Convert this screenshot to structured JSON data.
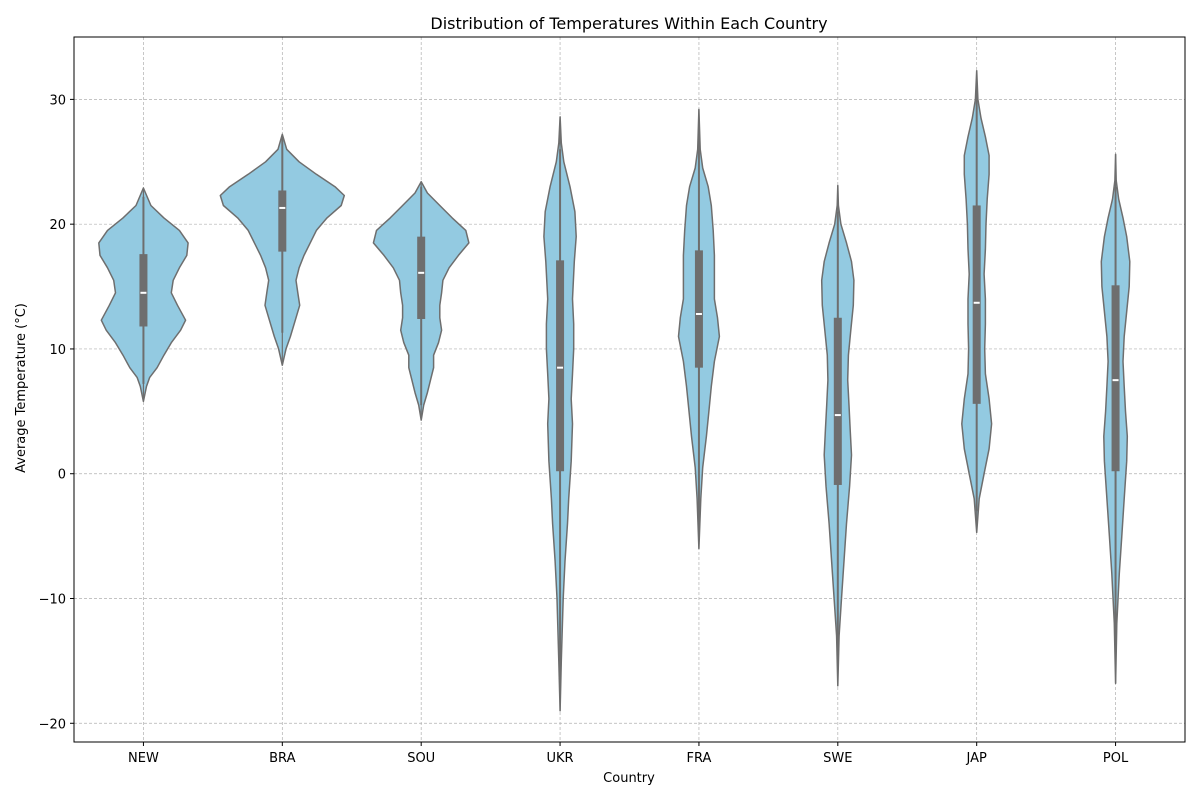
{
  "chart_data": {
    "type": "violin",
    "title": "Distribution of Temperatures Within Each Country",
    "xlabel": "Country",
    "ylabel": "Average Temperature (°C)",
    "ylim": [
      -21.5,
      35
    ],
    "yticks": [
      -20,
      -10,
      0,
      10,
      20,
      30
    ],
    "grid": true,
    "colors": {
      "fill": "#93cae1",
      "edge": "#6e6e6e",
      "box": "#6e6e6e",
      "median": "#ffffff",
      "grid": "#b0b0b0"
    },
    "categories": [
      "NEW",
      "BRA",
      "SOU",
      "UKR",
      "FRA",
      "SWE",
      "JAP",
      "POL"
    ],
    "violins": [
      {
        "category": "NEW",
        "min": 5.8,
        "max": 22.9,
        "q1": 11.8,
        "median": 14.5,
        "q3": 17.6,
        "whisker_low": 7.2,
        "whisker_high": 22.2,
        "profile": [
          [
            5.8,
            0.0
          ],
          [
            7.0,
            0.05
          ],
          [
            7.7,
            0.1
          ],
          [
            8.5,
            0.22
          ],
          [
            9.5,
            0.33
          ],
          [
            10.5,
            0.45
          ],
          [
            11.5,
            0.6
          ],
          [
            12.3,
            0.68
          ],
          [
            13.5,
            0.55
          ],
          [
            14.5,
            0.45
          ],
          [
            15.5,
            0.48
          ],
          [
            16.5,
            0.58
          ],
          [
            17.5,
            0.7
          ],
          [
            18.5,
            0.72
          ],
          [
            19.5,
            0.58
          ],
          [
            20.5,
            0.33
          ],
          [
            21.5,
            0.12
          ],
          [
            22.9,
            0.0
          ]
        ]
      },
      {
        "category": "BRA",
        "min": 8.7,
        "max": 27.2,
        "q1": 17.8,
        "median": 21.3,
        "q3": 22.7,
        "whisker_low": 11.3,
        "whisker_high": 27.0,
        "profile": [
          [
            8.7,
            0.0
          ],
          [
            10.0,
            0.06
          ],
          [
            11.0,
            0.13
          ],
          [
            12.5,
            0.22
          ],
          [
            13.5,
            0.28
          ],
          [
            14.5,
            0.25
          ],
          [
            15.5,
            0.22
          ],
          [
            16.5,
            0.27
          ],
          [
            17.5,
            0.35
          ],
          [
            18.5,
            0.45
          ],
          [
            19.5,
            0.55
          ],
          [
            20.5,
            0.72
          ],
          [
            21.5,
            0.95
          ],
          [
            22.3,
            1.0
          ],
          [
            23.0,
            0.85
          ],
          [
            24.0,
            0.55
          ],
          [
            25.0,
            0.27
          ],
          [
            26.0,
            0.07
          ],
          [
            27.2,
            0.0
          ]
        ]
      },
      {
        "category": "SOU",
        "min": 4.3,
        "max": 23.4,
        "q1": 12.4,
        "median": 16.1,
        "q3": 19.0,
        "whisker_low": 5.5,
        "whisker_high": 23.0,
        "profile": [
          [
            4.3,
            0.0
          ],
          [
            5.5,
            0.04
          ],
          [
            6.5,
            0.1
          ],
          [
            7.5,
            0.15
          ],
          [
            8.5,
            0.2
          ],
          [
            9.5,
            0.2
          ],
          [
            10.5,
            0.28
          ],
          [
            11.5,
            0.33
          ],
          [
            12.5,
            0.3
          ],
          [
            13.5,
            0.3
          ],
          [
            14.5,
            0.33
          ],
          [
            15.5,
            0.35
          ],
          [
            16.5,
            0.45
          ],
          [
            17.5,
            0.6
          ],
          [
            18.5,
            0.77
          ],
          [
            19.5,
            0.72
          ],
          [
            20.5,
            0.5
          ],
          [
            21.5,
            0.3
          ],
          [
            22.5,
            0.1
          ],
          [
            23.4,
            0.0
          ]
        ]
      },
      {
        "category": "UKR",
        "min": -19.0,
        "max": 28.6,
        "q1": 0.2,
        "median": 8.5,
        "q3": 17.1,
        "whisker_low": -16.5,
        "whisker_high": 26.0,
        "profile": [
          [
            -19.0,
            0.0
          ],
          [
            -15.0,
            0.02
          ],
          [
            -10.0,
            0.05
          ],
          [
            -7.0,
            0.08
          ],
          [
            -4.0,
            0.12
          ],
          [
            -2.0,
            0.14
          ],
          [
            1.0,
            0.18
          ],
          [
            4.0,
            0.2
          ],
          [
            6.0,
            0.18
          ],
          [
            8.0,
            0.2
          ],
          [
            10.0,
            0.22
          ],
          [
            12.0,
            0.22
          ],
          [
            14.0,
            0.2
          ],
          [
            17.0,
            0.23
          ],
          [
            19.0,
            0.26
          ],
          [
            21.0,
            0.24
          ],
          [
            23.0,
            0.16
          ],
          [
            25.0,
            0.06
          ],
          [
            26.5,
            0.02
          ],
          [
            28.6,
            0.0
          ]
        ]
      },
      {
        "category": "FRA",
        "min": -6.0,
        "max": 29.2,
        "q1": 8.5,
        "median": 12.8,
        "q3": 17.9,
        "whisker_low": -4.0,
        "whisker_high": 27.2,
        "profile": [
          [
            -6.0,
            0.0
          ],
          [
            -2.0,
            0.03
          ],
          [
            0.5,
            0.06
          ],
          [
            3.0,
            0.12
          ],
          [
            5.0,
            0.16
          ],
          [
            7.0,
            0.2
          ],
          [
            9.0,
            0.25
          ],
          [
            11.0,
            0.33
          ],
          [
            12.5,
            0.3
          ],
          [
            14.0,
            0.25
          ],
          [
            15.5,
            0.25
          ],
          [
            17.5,
            0.25
          ],
          [
            19.5,
            0.23
          ],
          [
            21.5,
            0.2
          ],
          [
            23.0,
            0.15
          ],
          [
            24.5,
            0.06
          ],
          [
            26.0,
            0.02
          ],
          [
            29.2,
            0.0
          ]
        ]
      },
      {
        "category": "SWE",
        "min": -17.0,
        "max": 23.1,
        "q1": -0.9,
        "median": 4.7,
        "q3": 12.5,
        "whisker_low": -14.5,
        "whisker_high": 21.0,
        "profile": [
          [
            -17.0,
            0.0
          ],
          [
            -13.0,
            0.02
          ],
          [
            -10.0,
            0.06
          ],
          [
            -7.0,
            0.1
          ],
          [
            -4.0,
            0.14
          ],
          [
            -1.0,
            0.19
          ],
          [
            1.5,
            0.22
          ],
          [
            3.5,
            0.2
          ],
          [
            5.5,
            0.18
          ],
          [
            7.5,
            0.16
          ],
          [
            9.5,
            0.17
          ],
          [
            11.5,
            0.21
          ],
          [
            13.5,
            0.25
          ],
          [
            15.5,
            0.26
          ],
          [
            17.0,
            0.22
          ],
          [
            18.5,
            0.14
          ],
          [
            20.0,
            0.05
          ],
          [
            21.5,
            0.01
          ],
          [
            23.1,
            0.0
          ]
        ]
      },
      {
        "category": "JAP",
        "min": -4.7,
        "max": 32.3,
        "q1": 5.6,
        "median": 13.7,
        "q3": 21.5,
        "whisker_low": -3.0,
        "whisker_high": 31.0,
        "profile": [
          [
            -4.7,
            0.0
          ],
          [
            -2.0,
            0.04
          ],
          [
            0.0,
            0.12
          ],
          [
            2.0,
            0.2
          ],
          [
            4.0,
            0.24
          ],
          [
            6.0,
            0.2
          ],
          [
            8.0,
            0.14
          ],
          [
            10.0,
            0.13
          ],
          [
            12.0,
            0.14
          ],
          [
            14.0,
            0.14
          ],
          [
            16.0,
            0.12
          ],
          [
            18.0,
            0.14
          ],
          [
            20.0,
            0.15
          ],
          [
            22.0,
            0.17
          ],
          [
            24.0,
            0.2
          ],
          [
            25.5,
            0.2
          ],
          [
            27.0,
            0.14
          ],
          [
            28.5,
            0.07
          ],
          [
            30.0,
            0.02
          ],
          [
            32.3,
            0.0
          ]
        ]
      },
      {
        "category": "POL",
        "min": -16.8,
        "max": 25.6,
        "q1": 0.2,
        "median": 7.5,
        "q3": 15.1,
        "whisker_low": -14.0,
        "whisker_high": 23.0,
        "profile": [
          [
            -16.8,
            0.0
          ],
          [
            -12.0,
            0.02
          ],
          [
            -8.0,
            0.06
          ],
          [
            -5.0,
            0.1
          ],
          [
            -2.0,
            0.14
          ],
          [
            1.0,
            0.18
          ],
          [
            3.0,
            0.19
          ],
          [
            5.0,
            0.16
          ],
          [
            7.0,
            0.14
          ],
          [
            9.0,
            0.12
          ],
          [
            11.0,
            0.14
          ],
          [
            13.0,
            0.18
          ],
          [
            15.0,
            0.22
          ],
          [
            17.0,
            0.23
          ],
          [
            19.0,
            0.18
          ],
          [
            20.5,
            0.12
          ],
          [
            22.0,
            0.05
          ],
          [
            23.5,
            0.01
          ],
          [
            25.6,
            0.0
          ]
        ]
      }
    ]
  }
}
